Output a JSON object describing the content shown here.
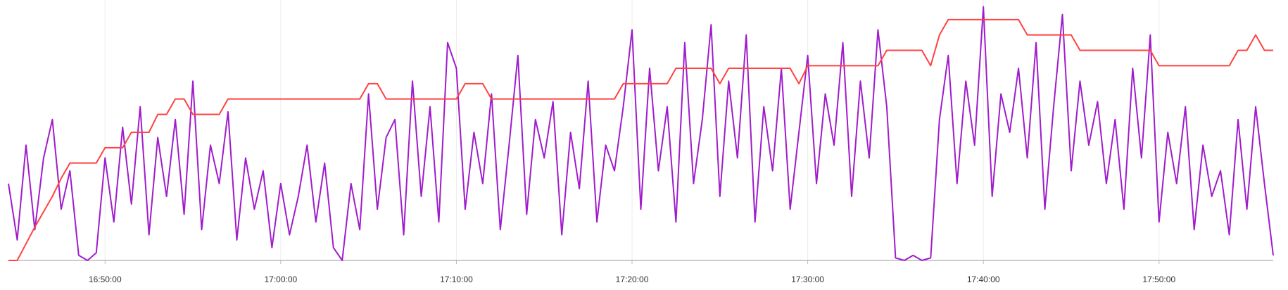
{
  "chart_data": {
    "type": "line",
    "x": [
      "16:44:30",
      "16:45:00",
      "16:45:30",
      "16:46:00",
      "16:46:30",
      "16:47:00",
      "16:47:30",
      "16:48:00",
      "16:48:30",
      "16:49:00",
      "16:49:30",
      "16:50:00",
      "16:50:30",
      "16:51:00",
      "16:51:30",
      "16:52:00",
      "16:52:30",
      "16:53:00",
      "16:53:30",
      "16:54:00",
      "16:54:30",
      "16:55:00",
      "16:55:30",
      "16:56:00",
      "16:56:30",
      "16:57:00",
      "16:57:30",
      "16:58:00",
      "16:58:30",
      "16:59:00",
      "16:59:30",
      "17:00:00",
      "17:00:30",
      "17:01:00",
      "17:01:30",
      "17:02:00",
      "17:02:30",
      "17:03:00",
      "17:03:30",
      "17:04:00",
      "17:04:30",
      "17:05:00",
      "17:05:30",
      "17:06:00",
      "17:06:30",
      "17:07:00",
      "17:07:30",
      "17:08:00",
      "17:08:30",
      "17:09:00",
      "17:09:30",
      "17:10:00",
      "17:10:30",
      "17:11:00",
      "17:11:30",
      "17:12:00",
      "17:12:30",
      "17:13:00",
      "17:13:30",
      "17:14:00",
      "17:14:30",
      "17:15:00",
      "17:15:30",
      "17:16:00",
      "17:16:30",
      "17:17:00",
      "17:17:30",
      "17:18:00",
      "17:18:30",
      "17:19:00",
      "17:19:30",
      "17:20:00",
      "17:20:30",
      "17:21:00",
      "17:21:30",
      "17:22:00",
      "17:22:30",
      "17:23:00",
      "17:23:30",
      "17:24:00",
      "17:24:30",
      "17:25:00",
      "17:25:30",
      "17:26:00",
      "17:26:30",
      "17:27:00",
      "17:27:30",
      "17:28:00",
      "17:28:30",
      "17:29:00",
      "17:29:30",
      "17:30:00",
      "17:30:30",
      "17:31:00",
      "17:31:30",
      "17:32:00",
      "17:32:30",
      "17:33:00",
      "17:33:30",
      "17:34:00",
      "17:34:30",
      "17:35:00",
      "17:35:30",
      "17:36:00",
      "17:36:30",
      "17:37:00",
      "17:37:30",
      "17:38:00",
      "17:38:30",
      "17:39:00",
      "17:39:30",
      "17:40:00",
      "17:40:30",
      "17:41:00",
      "17:41:30",
      "17:42:00",
      "17:42:30",
      "17:43:00",
      "17:43:30",
      "17:44:00",
      "17:44:30",
      "17:45:00",
      "17:45:30",
      "17:46:00",
      "17:46:30",
      "17:47:00",
      "17:47:30",
      "17:48:00",
      "17:48:30",
      "17:49:00",
      "17:49:30",
      "17:50:00",
      "17:50:30",
      "17:51:00",
      "17:51:30",
      "17:52:00",
      "17:52:30",
      "17:53:00",
      "17:53:30",
      "17:54:00",
      "17:54:30",
      "17:55:00",
      "17:55:30",
      "17:56:00",
      "17:56:30"
    ],
    "series": [
      {
        "color": "#a01ccc",
        "values": [
          30,
          8,
          45,
          12,
          40,
          55,
          20,
          35,
          2,
          0,
          3,
          40,
          15,
          52,
          22,
          60,
          10,
          48,
          25,
          55,
          18,
          70,
          12,
          45,
          30,
          58,
          8,
          40,
          20,
          35,
          5,
          30,
          10,
          25,
          45,
          15,
          38,
          5,
          0,
          30,
          12,
          65,
          20,
          48,
          55,
          10,
          70,
          25,
          60,
          15,
          85,
          75,
          20,
          50,
          30,
          65,
          12,
          45,
          80,
          18,
          55,
          40,
          62,
          10,
          50,
          28,
          70,
          15,
          45,
          35,
          60,
          90,
          20,
          75,
          35,
          60,
          15,
          85,
          30,
          55,
          92,
          25,
          70,
          40,
          88,
          15,
          60,
          35,
          75,
          20,
          50,
          80,
          30,
          65,
          45,
          85,
          25,
          70,
          40,
          90,
          60,
          1,
          0,
          2,
          0,
          1,
          55,
          80,
          30,
          70,
          45,
          99,
          25,
          65,
          50,
          75,
          40,
          85,
          20,
          60,
          96,
          35,
          70,
          45,
          62,
          30,
          55,
          20,
          75,
          40,
          88,
          15,
          50,
          30,
          60,
          12,
          45,
          25,
          35,
          10,
          55,
          20,
          60,
          30,
          2
        ]
      },
      {
        "color": "#ff4242",
        "values": [
          0,
          0,
          6.5,
          13,
          19,
          25,
          32,
          38,
          38,
          38,
          38,
          44,
          44,
          44,
          50,
          50,
          50,
          57,
          57,
          63,
          63,
          57,
          57,
          57,
          57,
          63,
          63,
          63,
          63,
          63,
          63,
          63,
          63,
          63,
          63,
          63,
          63,
          63,
          63,
          63,
          63,
          69,
          69,
          63,
          63,
          63,
          63,
          63,
          63,
          63,
          63,
          63,
          69,
          69,
          69,
          63,
          63,
          63,
          63,
          63,
          63,
          63,
          63,
          63,
          63,
          63,
          63,
          63,
          63,
          63,
          69,
          69,
          69,
          69,
          69,
          69,
          75,
          75,
          75,
          75,
          75,
          69,
          75,
          75,
          75,
          75,
          75,
          75,
          75,
          75,
          69,
          76,
          76,
          76,
          76,
          76,
          76,
          76,
          76,
          76,
          82,
          82,
          82,
          82,
          82,
          76,
          88,
          94,
          94,
          94,
          94,
          94,
          94,
          94,
          94,
          94,
          88,
          88,
          88,
          88,
          88,
          88,
          82,
          82,
          82,
          82,
          82,
          82,
          82,
          82,
          82,
          76,
          76,
          76,
          76,
          76,
          76,
          76,
          76,
          76,
          82,
          82,
          88,
          82,
          82
        ]
      }
    ],
    "xlim": [
      "16:44:30",
      "17:56:30"
    ],
    "xticks": [
      "16:50:00",
      "17:00:00",
      "17:10:00",
      "17:20:00",
      "17:30:00",
      "17:40:00",
      "17:50:00"
    ],
    "ylim": [
      0,
      100
    ],
    "grid": true
  }
}
